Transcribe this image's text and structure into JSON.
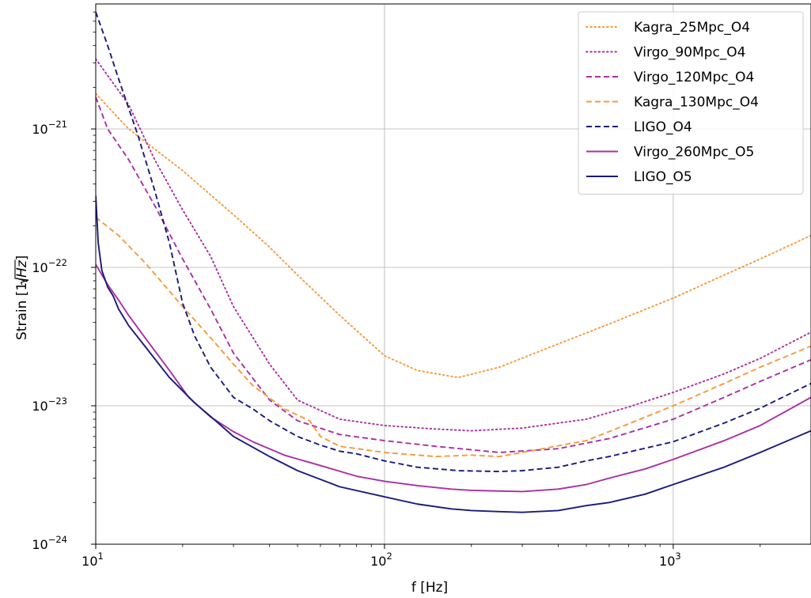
{
  "chart_data": {
    "type": "line",
    "xlabel": "f [Hz]",
    "ylabel": "Strain [1/√Hz]",
    "ylabel_parts": {
      "prefix": "Strain [1/",
      "radicand": "Hz",
      "suffix": "]"
    },
    "x_scale": "log",
    "y_scale": "log",
    "xlim": [
      10,
      3000
    ],
    "ylim": [
      1e-24,
      8e-21
    ],
    "grid": true,
    "legend_position": "top-right",
    "x_ticks": [
      {
        "value": 10,
        "base": "10",
        "exp": "1"
      },
      {
        "value": 100,
        "base": "10",
        "exp": "2"
      },
      {
        "value": 1000,
        "base": "10",
        "exp": "3"
      }
    ],
    "y_ticks": [
      {
        "value": 1e-24,
        "base": "10",
        "exp": "−24"
      },
      {
        "value": 1e-23,
        "base": "10",
        "exp": "−23"
      },
      {
        "value": 1e-22,
        "base": "10",
        "exp": "−22"
      },
      {
        "value": 1e-21,
        "base": "10",
        "exp": "−21"
      }
    ],
    "series": [
      {
        "name": "Kagra_25Mpc_O4",
        "color": "#f39b3c",
        "dash": "dotted",
        "x": [
          10,
          13,
          20,
          30,
          40,
          50,
          70,
          100,
          130,
          180,
          250,
          400,
          600,
          1000,
          1500,
          2000,
          3000
        ],
        "y": [
          1.8e-21,
          1e-21,
          5e-22,
          2.4e-22,
          1.4e-22,
          8.8e-23,
          4.5e-23,
          2.3e-23,
          1.8e-23,
          1.6e-23,
          1.9e-23,
          2.8e-23,
          3.9e-23,
          6e-23,
          8.8e-23,
          1.15e-22,
          1.7e-22
        ]
      },
      {
        "name": "Virgo_90Mpc_O4",
        "color": "#ab2fa3",
        "dash": "dotted",
        "x": [
          10,
          13,
          16,
          20,
          25,
          30,
          40,
          50,
          70,
          100,
          150,
          200,
          300,
          500,
          700,
          1000,
          1500,
          2000,
          3000
        ],
        "y": [
          3.2e-21,
          1.5e-21,
          6e-22,
          2.6e-22,
          1.2e-22,
          5.2e-23,
          2e-23,
          1.1e-23,
          8e-24,
          7.2e-24,
          6.8e-24,
          6.6e-24,
          6.9e-24,
          8e-24,
          9.8e-24,
          1.25e-23,
          1.7e-23,
          2.2e-23,
          3.4e-23
        ]
      },
      {
        "name": "Virgo_120Mpc_O4",
        "color": "#ab2fa3",
        "dash": "dashed",
        "x": [
          10,
          11,
          13,
          16,
          20,
          25,
          30,
          40,
          50,
          70,
          100,
          150,
          250,
          400,
          600,
          1000,
          1500,
          2000,
          3000
        ],
        "y": [
          1.7e-21,
          1e-21,
          6e-22,
          2.8e-22,
          1.15e-22,
          5e-23,
          2.4e-23,
          1.1e-23,
          7.8e-24,
          6.2e-24,
          5.6e-24,
          5.1e-24,
          4.6e-24,
          4.9e-24,
          5.8e-24,
          8e-24,
          1.15e-23,
          1.5e-23,
          2.15e-23
        ]
      },
      {
        "name": "Kagra_130Mpc_O4",
        "color": "#f39b3c",
        "dash": "dashed",
        "x": [
          10,
          12,
          15,
          20,
          25,
          30,
          35,
          45,
          55,
          60,
          70,
          100,
          150,
          200,
          250,
          300,
          500,
          700,
          1000,
          1500,
          2000,
          3000
        ],
        "y": [
          2.3e-22,
          1.7e-22,
          1.05e-22,
          5.2e-23,
          3.1e-23,
          2e-23,
          1.4e-23,
          9.5e-24,
          7.8e-24,
          6e-24,
          5.1e-24,
          4.6e-24,
          4.3e-24,
          4.4e-24,
          4.3e-24,
          4.6e-24,
          5.6e-24,
          7.4e-24,
          1e-23,
          1.45e-23,
          1.9e-23,
          2.7e-23
        ]
      },
      {
        "name": "LIGO_O4",
        "color": "#1a1a7a",
        "dash": "dashed",
        "x": [
          10,
          11,
          12,
          14,
          16,
          18,
          20,
          22,
          25,
          30,
          35,
          40,
          50,
          60,
          70,
          80,
          100,
          130,
          180,
          250,
          300,
          400,
          500,
          600,
          1000,
          1500,
          2000,
          3000
        ],
        "y": [
          7e-21,
          4e-21,
          2.3e-21,
          9e-22,
          3.6e-22,
          1.5e-22,
          5.5e-23,
          3.2e-23,
          1.9e-23,
          1.15e-23,
          9.5e-24,
          7.8e-24,
          6e-24,
          5.2e-24,
          4.7e-24,
          4.5e-24,
          4e-24,
          3.6e-24,
          3.4e-24,
          3.35e-24,
          3.4e-24,
          3.6e-24,
          4e-24,
          4.3e-24,
          5.5e-24,
          7.5e-24,
          9.6e-24,
          1.45e-23
        ]
      },
      {
        "name": "Virgo_260Mpc_O5",
        "color": "#ab2fa3",
        "dash": "solid",
        "x": [
          10,
          11,
          12,
          13,
          15,
          18,
          21,
          25,
          30,
          35,
          45,
          60,
          80,
          100,
          130,
          170,
          200,
          300,
          400,
          500,
          600,
          800,
          1000,
          1500,
          2000,
          3000
        ],
        "y": [
          1.05e-22,
          7.5e-23,
          5.8e-23,
          4.5e-23,
          3e-23,
          1.8e-23,
          1.15e-23,
          8.3e-24,
          6.5e-24,
          5.5e-24,
          4.4e-24,
          3.7e-24,
          3.1e-24,
          2.85e-24,
          2.65e-24,
          2.5e-24,
          2.45e-24,
          2.4e-24,
          2.5e-24,
          2.7e-24,
          3e-24,
          3.5e-24,
          4.1e-24,
          5.6e-24,
          7.2e-24,
          1.15e-23
        ]
      },
      {
        "name": "LIGO_O5",
        "color": "#1a1a7a",
        "dash": "solid",
        "x": [
          10,
          10.2,
          10.5,
          11,
          11.5,
          12,
          13,
          15,
          18,
          22,
          26,
          30,
          40,
          50,
          70,
          100,
          130,
          170,
          200,
          250,
          300,
          400,
          500,
          600,
          800,
          1000,
          1500,
          2000,
          3000
        ],
        "y": [
          3.3e-22,
          1.5e-22,
          9.5e-23,
          7.2e-23,
          6.2e-23,
          5e-23,
          3.8e-23,
          2.6e-23,
          1.6e-23,
          1.05e-23,
          7.8e-24,
          6e-24,
          4.3e-24,
          3.4e-24,
          2.6e-24,
          2.2e-24,
          1.95e-24,
          1.8e-24,
          1.75e-24,
          1.72e-24,
          1.7e-24,
          1.75e-24,
          1.9e-24,
          2e-24,
          2.3e-24,
          2.7e-24,
          3.6e-24,
          4.6e-24,
          6.6e-24
        ]
      }
    ]
  }
}
